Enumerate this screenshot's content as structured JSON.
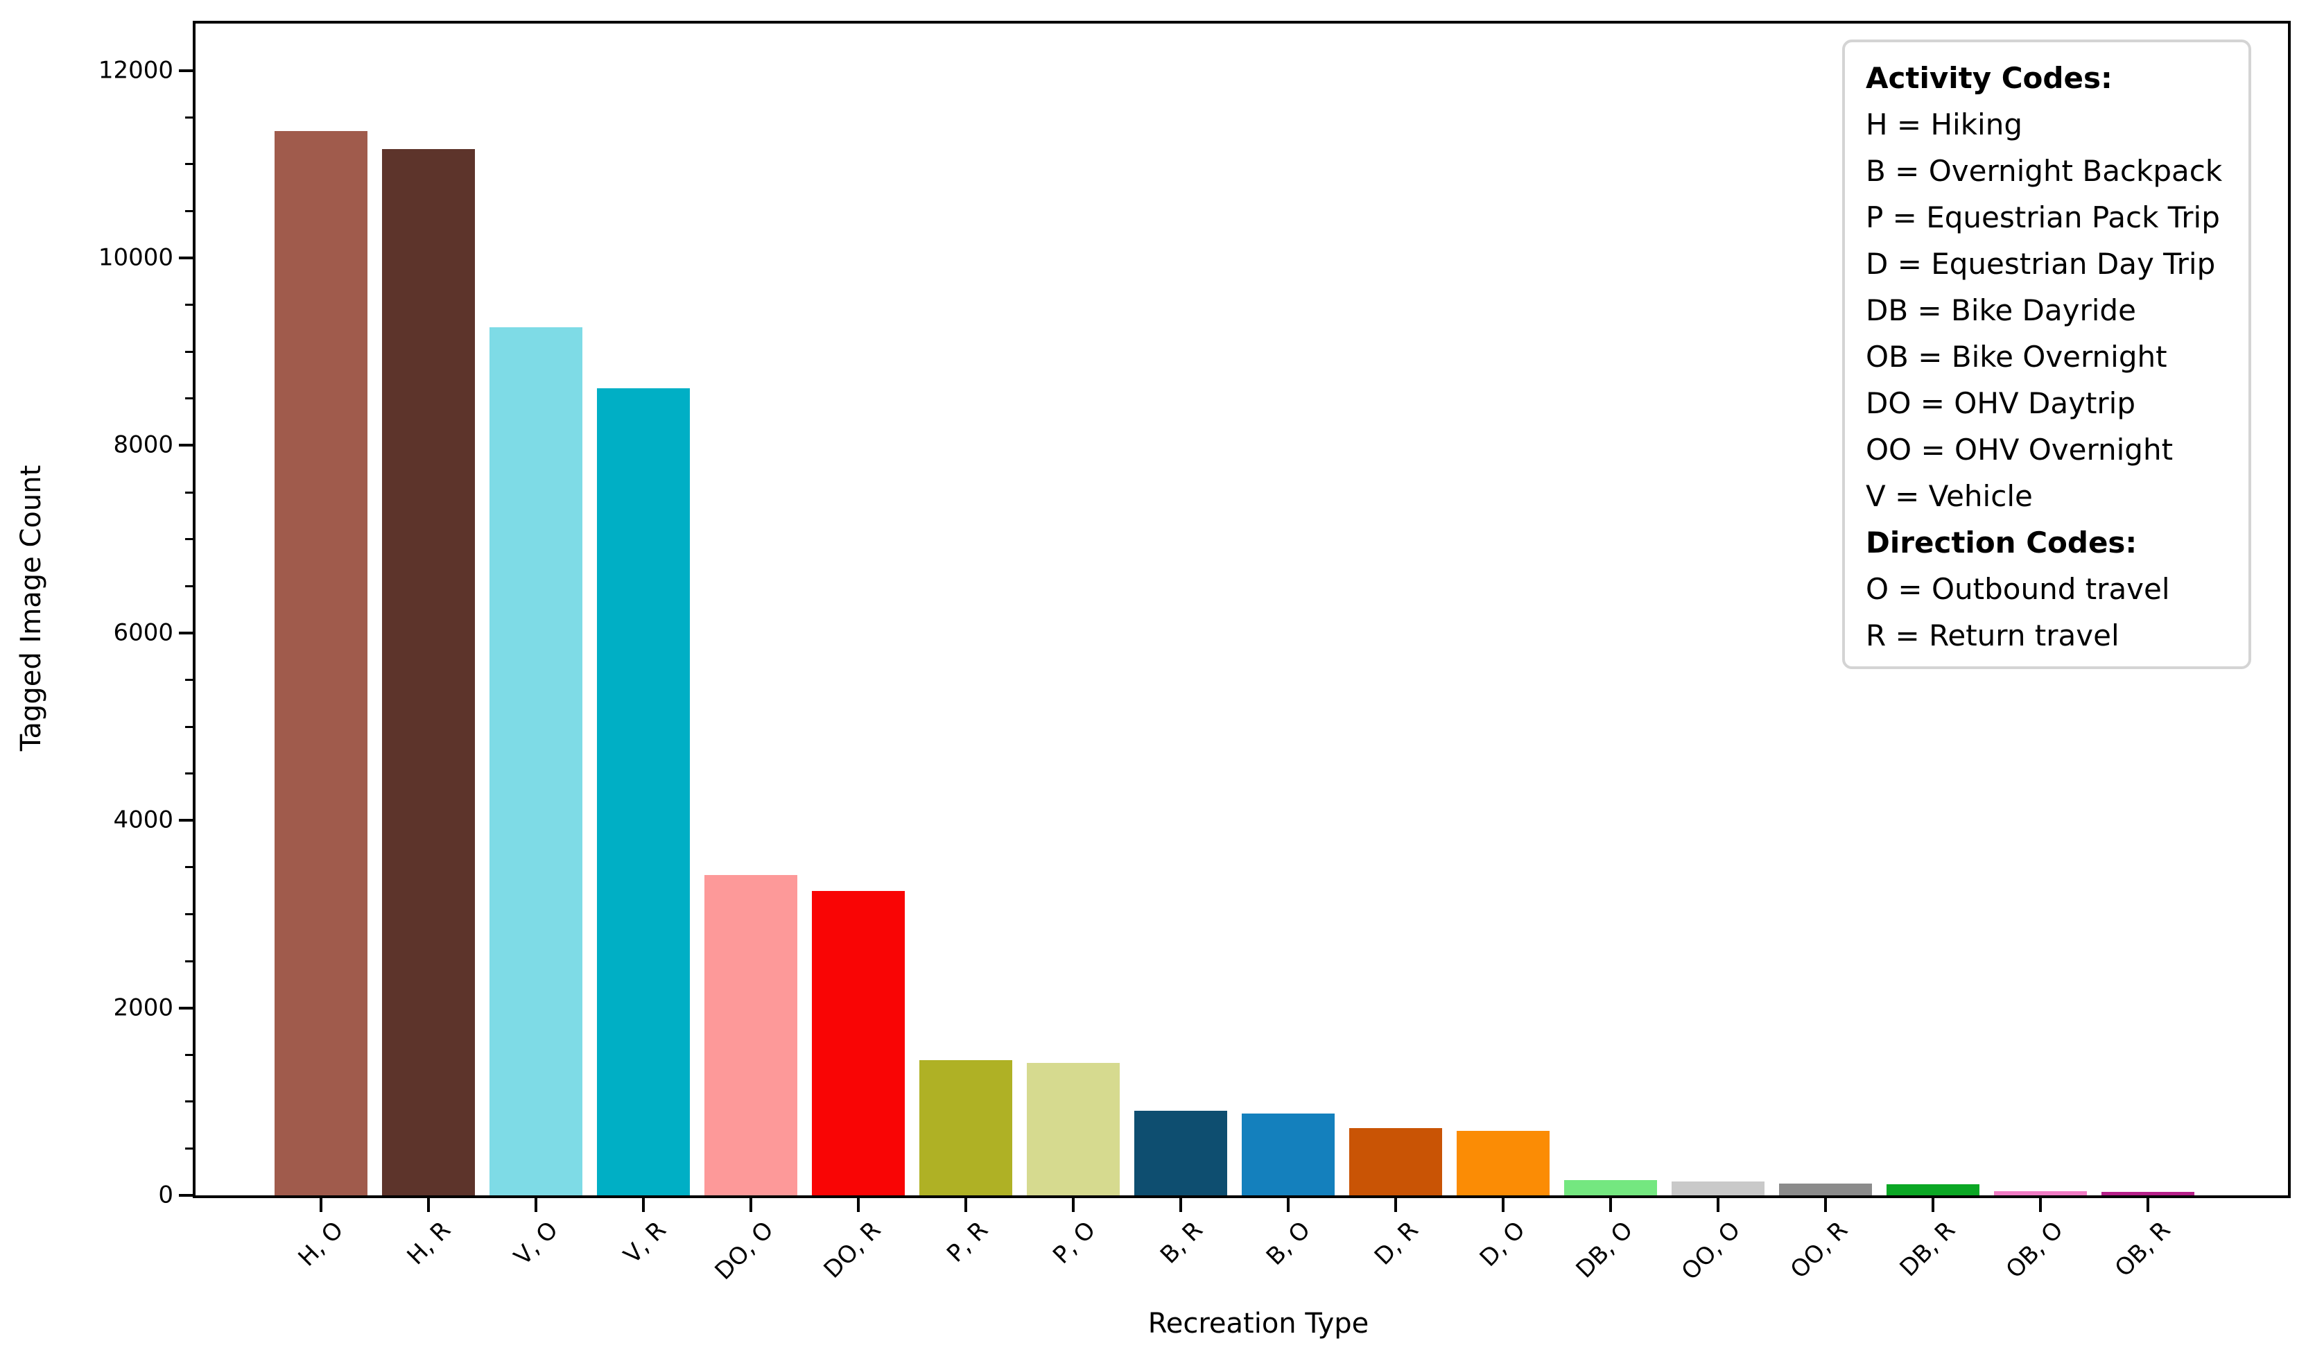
{
  "figure": {
    "background": "#ffffff"
  },
  "chart_data": {
    "type": "bar",
    "title": "",
    "xlabel": "Recreation Type",
    "ylabel": "Tagged Image Count",
    "categories": [
      "H, O",
      "H, R",
      "V, O",
      "V, R",
      "DO, O",
      "DO, R",
      "P, R",
      "P, O",
      "B, R",
      "B, O",
      "D, R",
      "D, O",
      "DB, O",
      "OO, O",
      "OO, R",
      "DB, R",
      "OB, O",
      "OB, R"
    ],
    "values": [
      11350,
      11160,
      9260,
      8610,
      3420,
      3250,
      1440,
      1410,
      900,
      875,
      720,
      685,
      160,
      145,
      125,
      115,
      45,
      38
    ],
    "bar_colors": [
      "#A05B4C",
      "#5D342B",
      "#7EDBE6",
      "#00AFC5",
      "#FD9999",
      "#F90505",
      "#AFB125",
      "#D6DA8F",
      "#0E4E70",
      "#1480BD",
      "#C95405",
      "#FB8C05",
      "#74E780",
      "#C9C9C9",
      "#8B8B8B",
      "#0BA724",
      "#F07BC4",
      "#B62089"
    ],
    "ylim": [
      0,
      12500
    ],
    "yticks": [
      0,
      2000,
      4000,
      6000,
      8000,
      10000,
      12000
    ],
    "ytick_labels": [
      "0",
      "2000",
      "4000",
      "6000",
      "8000",
      "10000",
      "12000"
    ],
    "minor_tick_step": 500,
    "grid": false,
    "x_tick_rotation_deg": 45,
    "legend_position": "upper right"
  },
  "legend": {
    "lines": [
      {
        "text": "Activity Codes:",
        "bold": true
      },
      {
        "text": "H = Hiking",
        "bold": false
      },
      {
        "text": "B = Overnight Backpack",
        "bold": false
      },
      {
        "text": "P = Equestrian Pack Trip",
        "bold": false
      },
      {
        "text": "D = Equestrian Day Trip",
        "bold": false
      },
      {
        "text": "DB = Bike Dayride",
        "bold": false
      },
      {
        "text": "OB = Bike Overnight",
        "bold": false
      },
      {
        "text": "DO = OHV Daytrip",
        "bold": false
      },
      {
        "text": "OO = OHV Overnight",
        "bold": false
      },
      {
        "text": "V = Vehicle",
        "bold": false
      },
      {
        "text": "Direction Codes:",
        "bold": true
      },
      {
        "text": "O = Outbound travel",
        "bold": false
      },
      {
        "text": "R = Return travel",
        "bold": false
      }
    ]
  }
}
